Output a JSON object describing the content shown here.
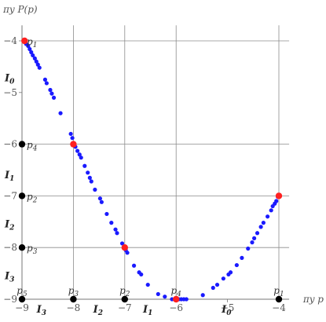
{
  "chart_data": {
    "type": "scatter",
    "xlabel": "πy p",
    "ylabel": "πy P(p)",
    "xlim": [
      -9,
      -3.8
    ],
    "ylim": [
      -9,
      -3.7
    ],
    "xticks": [
      {
        "value": -9,
        "label": "−9"
      },
      {
        "value": -8,
        "label": "−8"
      },
      {
        "value": -7,
        "label": "−7"
      },
      {
        "value": -6,
        "label": "−6"
      },
      {
        "value": -5,
        "label": "−5"
      },
      {
        "value": -4,
        "label": "−4"
      }
    ],
    "yticks": [
      {
        "value": -9,
        "label": "−9"
      },
      {
        "value": -8,
        "label": "−8"
      },
      {
        "value": -7,
        "label": "−7"
      },
      {
        "value": -6,
        "label": "−6"
      },
      {
        "value": -5,
        "label": "−5"
      },
      {
        "value": -4,
        "label": "−4"
      }
    ],
    "grid_x": [
      -8,
      -7,
      -6,
      -4
    ],
    "grid_y": [
      -6,
      -7,
      -8,
      -4
    ],
    "marker_colors": {
      "series": "#1a1aff",
      "highlight": "#ff2020",
      "axis_points": "#000000"
    },
    "series": [
      {
        "points": [
          [
            -8.95,
            -4.02
          ],
          [
            -8.92,
            -4.06
          ],
          [
            -8.88,
            -4.1
          ],
          [
            -8.85,
            -4.16
          ],
          [
            -8.82,
            -4.22
          ],
          [
            -8.79,
            -4.28
          ],
          [
            -8.75,
            -4.34
          ],
          [
            -8.72,
            -4.4
          ],
          [
            -8.69,
            -4.46
          ],
          [
            -8.66,
            -4.52
          ],
          [
            -8.55,
            -4.75
          ],
          [
            -8.52,
            -4.82
          ],
          [
            -8.45,
            -4.95
          ],
          [
            -8.42,
            -5.02
          ],
          [
            -8.38,
            -5.1
          ],
          [
            -8.25,
            -5.4
          ],
          [
            -8.05,
            -5.8
          ],
          [
            -8.02,
            -5.88
          ],
          [
            -7.96,
            -6.05
          ],
          [
            -7.92,
            -6.13
          ],
          [
            -7.88,
            -6.2
          ],
          [
            -7.85,
            -6.26
          ],
          [
            -7.78,
            -6.42
          ],
          [
            -7.72,
            -6.55
          ],
          [
            -7.68,
            -6.65
          ],
          [
            -7.65,
            -6.72
          ],
          [
            -7.58,
            -6.88
          ],
          [
            -7.48,
            -7.05
          ],
          [
            -7.45,
            -7.12
          ],
          [
            -7.35,
            -7.35
          ],
          [
            -7.26,
            -7.52
          ],
          [
            -7.18,
            -7.65
          ],
          [
            -7.15,
            -7.72
          ],
          [
            -7.05,
            -7.92
          ],
          [
            -6.98,
            -8.05
          ],
          [
            -6.95,
            -8.1
          ],
          [
            -6.82,
            -8.35
          ],
          [
            -6.72,
            -8.48
          ],
          [
            -6.68,
            -8.52
          ],
          [
            -6.55,
            -8.72
          ],
          [
            -6.35,
            -8.9
          ],
          [
            -6.22,
            -8.95
          ],
          [
            -6.08,
            -9.0
          ],
          [
            -6.02,
            -9.0
          ],
          [
            -5.95,
            -9.0
          ],
          [
            -5.9,
            -9.0
          ],
          [
            -5.85,
            -9.0
          ],
          [
            -5.8,
            -9.0
          ],
          [
            -5.48,
            -8.92
          ],
          [
            -5.28,
            -8.78
          ],
          [
            -5.2,
            -8.72
          ],
          [
            -5.08,
            -8.6
          ],
          [
            -4.98,
            -8.52
          ],
          [
            -4.94,
            -8.48
          ],
          [
            -4.82,
            -8.34
          ],
          [
            -4.72,
            -8.2
          ],
          [
            -4.6,
            -8.02
          ],
          [
            -4.52,
            -7.9
          ],
          [
            -4.48,
            -7.82
          ],
          [
            -4.42,
            -7.72
          ],
          [
            -4.35,
            -7.6
          ],
          [
            -4.3,
            -7.52
          ],
          [
            -4.22,
            -7.4
          ],
          [
            -4.15,
            -7.28
          ],
          [
            -4.12,
            -7.2
          ],
          [
            -4.08,
            -7.15
          ],
          [
            -4.05,
            -7.1
          ],
          [
            -4.02,
            -7.02
          ]
        ]
      }
    ],
    "highlight_points": [
      [
        -8.95,
        -4.0
      ],
      [
        -8.0,
        -6.0
      ],
      [
        -7.0,
        -8.0
      ],
      [
        -6.0,
        -9.0
      ],
      [
        -4.0,
        -7.0
      ]
    ],
    "axis_points": [
      [
        -9,
        -6
      ],
      [
        -9,
        -7
      ],
      [
        -9,
        -8
      ],
      [
        -9,
        -9
      ],
      [
        -8,
        -9
      ],
      [
        -7,
        -9
      ],
      [
        -4,
        -9
      ]
    ],
    "point_labels": [
      {
        "x": -9,
        "y": -4,
        "base": "p",
        "sub": "1"
      },
      {
        "x": -9,
        "y": -6,
        "base": "p",
        "sub": "4"
      },
      {
        "x": -9,
        "y": -7,
        "base": "p",
        "sub": "2"
      },
      {
        "x": -9,
        "y": -8,
        "base": "p",
        "sub": "3"
      },
      {
        "x": -9,
        "y": -9,
        "base": "p",
        "sub": "5",
        "pos": "above"
      },
      {
        "x": -8,
        "y": -9,
        "base": "p",
        "sub": "3",
        "pos": "above"
      },
      {
        "x": -7,
        "y": -9,
        "base": "p",
        "sub": "2",
        "pos": "above"
      },
      {
        "x": -6,
        "y": -9,
        "base": "p",
        "sub": "4",
        "pos": "above"
      },
      {
        "x": -4,
        "y": -9,
        "base": "p",
        "sub": "1",
        "pos": "above"
      }
    ],
    "interval_labels_y": [
      {
        "y": -4.72,
        "base": "I",
        "sub": "0"
      },
      {
        "y": -6.6,
        "base": "I",
        "sub": "1"
      },
      {
        "y": -7.55,
        "base": "I",
        "sub": "2"
      },
      {
        "y": -8.55,
        "base": "I",
        "sub": "3"
      }
    ],
    "interval_labels_x": [
      {
        "x": -8.62,
        "base": "I",
        "sub": "3"
      },
      {
        "x": -7.52,
        "base": "I",
        "sub": "2"
      },
      {
        "x": -6.55,
        "base": "I",
        "sub": "1"
      },
      {
        "x": -5.02,
        "base": "I",
        "sub": "0"
      }
    ]
  }
}
